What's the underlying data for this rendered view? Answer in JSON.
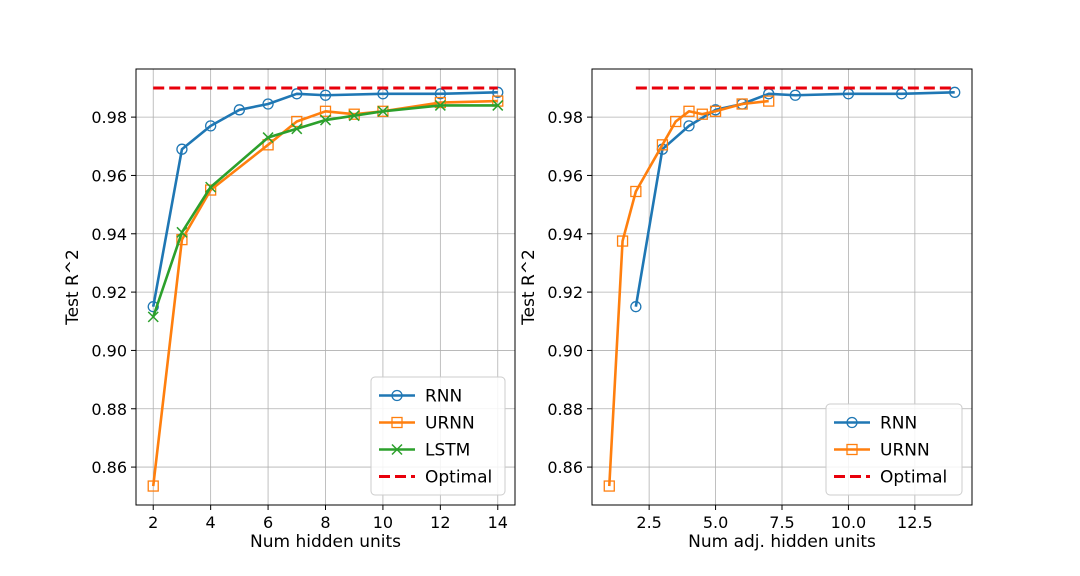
{
  "chart_data": [
    {
      "type": "line",
      "title": "",
      "xlabel": "Num hidden units",
      "ylabel": "Test R^2",
      "xlim": [
        1.4,
        14.6
      ],
      "ylim": [
        0.847,
        0.9965
      ],
      "xticks": [
        2,
        4,
        6,
        8,
        10,
        12,
        14
      ],
      "xtick_labels": [
        "2",
        "4",
        "6",
        "8",
        "10",
        "12",
        "14"
      ],
      "yticks": [
        0.86,
        0.88,
        0.9,
        0.92,
        0.94,
        0.96,
        0.98
      ],
      "ytick_labels": [
        "0.86",
        "0.88",
        "0.90",
        "0.92",
        "0.94",
        "0.96",
        "0.98"
      ],
      "grid": true,
      "legend_position": "lower-right",
      "series": [
        {
          "name": "RNN",
          "color": "#1f77b4",
          "marker": "circle",
          "style": "solid",
          "x": [
            2,
            3,
            4,
            5,
            6,
            7,
            8,
            10,
            12,
            14
          ],
          "y": [
            0.915,
            0.969,
            0.977,
            0.9825,
            0.9845,
            0.988,
            0.9875,
            0.988,
            0.988,
            0.9885
          ]
        },
        {
          "name": "URNN",
          "color": "#ff7f0e",
          "marker": "square",
          "style": "solid",
          "x": [
            2,
            3,
            4,
            6,
            7,
            8,
            9,
            10,
            12,
            14
          ],
          "y": [
            0.8535,
            0.938,
            0.955,
            0.9705,
            0.9785,
            0.982,
            0.981,
            0.982,
            0.985,
            0.9855
          ]
        },
        {
          "name": "LSTM",
          "color": "#2ca02c",
          "marker": "x",
          "style": "solid",
          "x": [
            2,
            3,
            4,
            6,
            7,
            8,
            9,
            10,
            12,
            14
          ],
          "y": [
            0.9115,
            0.9405,
            0.956,
            0.973,
            0.976,
            0.979,
            0.9805,
            0.982,
            0.984,
            0.984
          ]
        },
        {
          "name": "Optimal",
          "color": "#e8000b",
          "marker": "none",
          "style": "dashed",
          "x": [
            2,
            14
          ],
          "y": [
            0.99,
            0.99
          ]
        }
      ]
    },
    {
      "type": "line",
      "title": "",
      "xlabel": "Num adj. hidden units",
      "ylabel": "Test R^2",
      "xlim": [
        0.35,
        14.65
      ],
      "ylim": [
        0.847,
        0.9965
      ],
      "xticks": [
        2.5,
        5.0,
        7.5,
        10.0,
        12.5
      ],
      "xtick_labels": [
        "2.5",
        "5.0",
        "7.5",
        "10.0",
        "12.5"
      ],
      "yticks": [
        0.86,
        0.88,
        0.9,
        0.92,
        0.94,
        0.96,
        0.98
      ],
      "ytick_labels": [
        "0.86",
        "0.88",
        "0.90",
        "0.92",
        "0.94",
        "0.96",
        "0.98"
      ],
      "grid": true,
      "legend_position": "lower-right",
      "series": [
        {
          "name": "RNN",
          "color": "#1f77b4",
          "marker": "circle",
          "style": "solid",
          "x": [
            2,
            3,
            4,
            5,
            6,
            7,
            8,
            10,
            12,
            14
          ],
          "y": [
            0.915,
            0.969,
            0.977,
            0.9825,
            0.9845,
            0.988,
            0.9875,
            0.988,
            0.988,
            0.9885
          ]
        },
        {
          "name": "URNN",
          "color": "#ff7f0e",
          "marker": "square",
          "style": "solid",
          "x": [
            1.0,
            1.5,
            2.0,
            3.0,
            3.5,
            4.0,
            4.5,
            5.0,
            6.0,
            7.0
          ],
          "y": [
            0.8535,
            0.9375,
            0.9545,
            0.9705,
            0.9785,
            0.982,
            0.981,
            0.982,
            0.9845,
            0.9855
          ]
        },
        {
          "name": "Optimal",
          "color": "#e8000b",
          "marker": "none",
          "style": "dashed",
          "x": [
            2,
            14
          ],
          "y": [
            0.99,
            0.99
          ]
        }
      ]
    }
  ]
}
